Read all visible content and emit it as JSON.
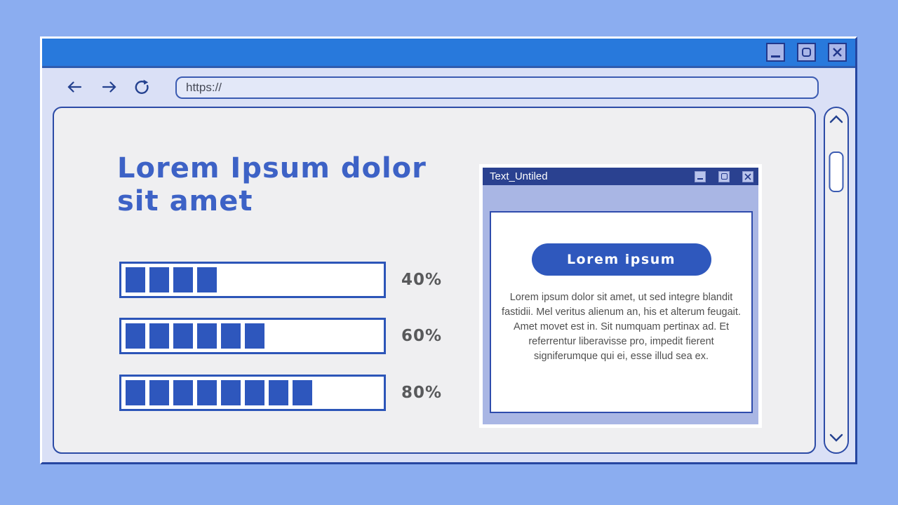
{
  "browser_window": {
    "titlebar_controls": {
      "minimize": "minimize",
      "maximize": "maximize",
      "close": "close"
    },
    "navbar": {
      "back_icon": "back-arrow",
      "forward_icon": "forward-arrow",
      "refresh_icon": "refresh",
      "url": "https://"
    }
  },
  "main": {
    "heading": {
      "line1": "Lorem Ipsum dolor",
      "line2": "sit amet"
    },
    "progress_bars": [
      {
        "label": "40%",
        "percent": 40,
        "blocks": 4
      },
      {
        "label": "60%",
        "percent": 60,
        "blocks": 6
      },
      {
        "label": "80%",
        "percent": 80,
        "blocks": 8
      }
    ]
  },
  "dialog": {
    "title": "Text_Untiled",
    "controls": {
      "minimize": "minimize",
      "maximize": "maximize",
      "close": "close"
    },
    "button_label": "Lorem ipsum",
    "body_text": "Lorem ipsum dolor sit amet, ut sed integre blandit fastidii. Mel veritus alienum an, his et alterum feugait. Amet movet est in. Sit numquam pertinax ad. Et referrentur liberavisse pro, impedit fierent signiferumque qui ei, esse illud sea ex."
  },
  "scrollbar": {
    "up_icon": "chevron-up",
    "down_icon": "chevron-down"
  },
  "colors": {
    "page_background": "#8badf0",
    "titlebar_blue": "#2879dc",
    "accent_blue": "#2f58bd",
    "dialog_titlebar_navy": "#2a4190",
    "dialog_body_periwinkle": "#a9b6e4",
    "heading_blue": "#3d62c6",
    "label_gray": "#58595b",
    "body_text_gray": "#4f4f4f",
    "window_lavender": "#dae0f6",
    "navy_border": "#2c4ba6"
  }
}
